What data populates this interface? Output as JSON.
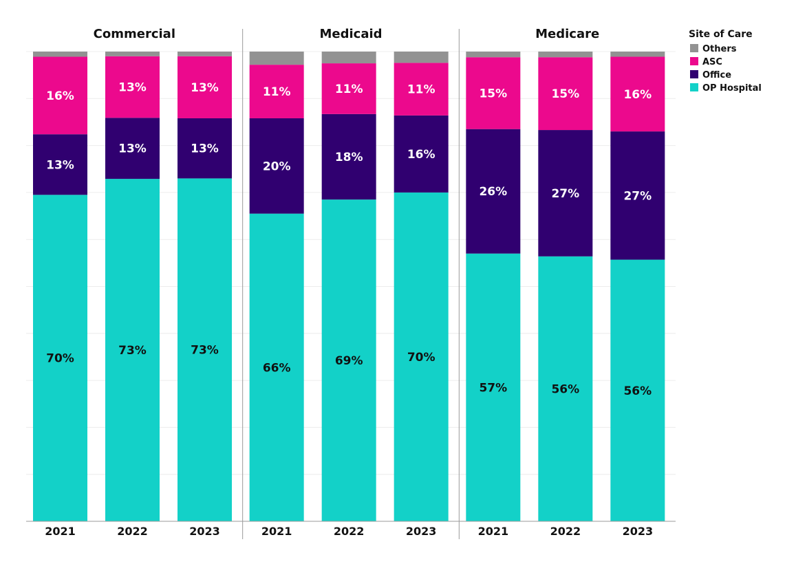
{
  "chart_data": {
    "type": "bar",
    "stacked": true,
    "panels": [
      "Commercial",
      "Medicaid",
      "Medicare"
    ],
    "categories": [
      "2021",
      "2022",
      "2023"
    ],
    "legend": {
      "title": "Site of Care",
      "position": "top-right",
      "items": [
        "Others",
        "ASC",
        "Office",
        "OP Hospital"
      ]
    },
    "colors": {
      "Others": "#929292",
      "ASC": "#ec098d",
      "Office": "#300070",
      "OP Hospital": "#13d1c8"
    },
    "label_colors": {
      "Others": "#ffffff",
      "ASC": "#ffffff",
      "Office": "#ffffff",
      "OP Hospital": "#111111"
    },
    "ylim": [
      0,
      100
    ],
    "grid": true,
    "stack_order": [
      "OP Hospital",
      "Office",
      "ASC",
      "Others"
    ],
    "data": {
      "Commercial": {
        "OP Hospital": [
          69.5,
          72.9,
          73.0
        ],
        "Office": [
          12.9,
          13.0,
          12.8
        ],
        "ASC": [
          16.5,
          13.1,
          13.2
        ],
        "Others": [
          1.1,
          1.0,
          1.0
        ]
      },
      "Medicaid": {
        "OP Hospital": [
          65.5,
          68.5,
          70.0
        ],
        "Office": [
          20.3,
          18.2,
          16.4
        ],
        "ASC": [
          11.4,
          10.8,
          11.2
        ],
        "Others": [
          2.8,
          2.5,
          2.4
        ]
      },
      "Medicare": {
        "OP Hospital": [
          57.0,
          56.4,
          55.7
        ],
        "Office": [
          26.5,
          26.9,
          27.3
        ],
        "ASC": [
          15.3,
          15.5,
          15.9
        ],
        "Others": [
          1.2,
          1.2,
          1.1
        ]
      }
    },
    "value_labels": {
      "Commercial": {
        "OP Hospital": [
          "70%",
          "73%",
          "73%"
        ],
        "Office": [
          "13%",
          "13%",
          "13%"
        ],
        "ASC": [
          "16%",
          "13%",
          "13%"
        ]
      },
      "Medicaid": {
        "OP Hospital": [
          "66%",
          "69%",
          "70%"
        ],
        "Office": [
          "20%",
          "18%",
          "16%"
        ],
        "ASC": [
          "11%",
          "11%",
          "11%"
        ]
      },
      "Medicare": {
        "OP Hospital": [
          "57%",
          "56%",
          "56%"
        ],
        "Office": [
          "26%",
          "27%",
          "27%"
        ],
        "ASC": [
          "15%",
          "15%",
          "16%"
        ]
      }
    }
  }
}
